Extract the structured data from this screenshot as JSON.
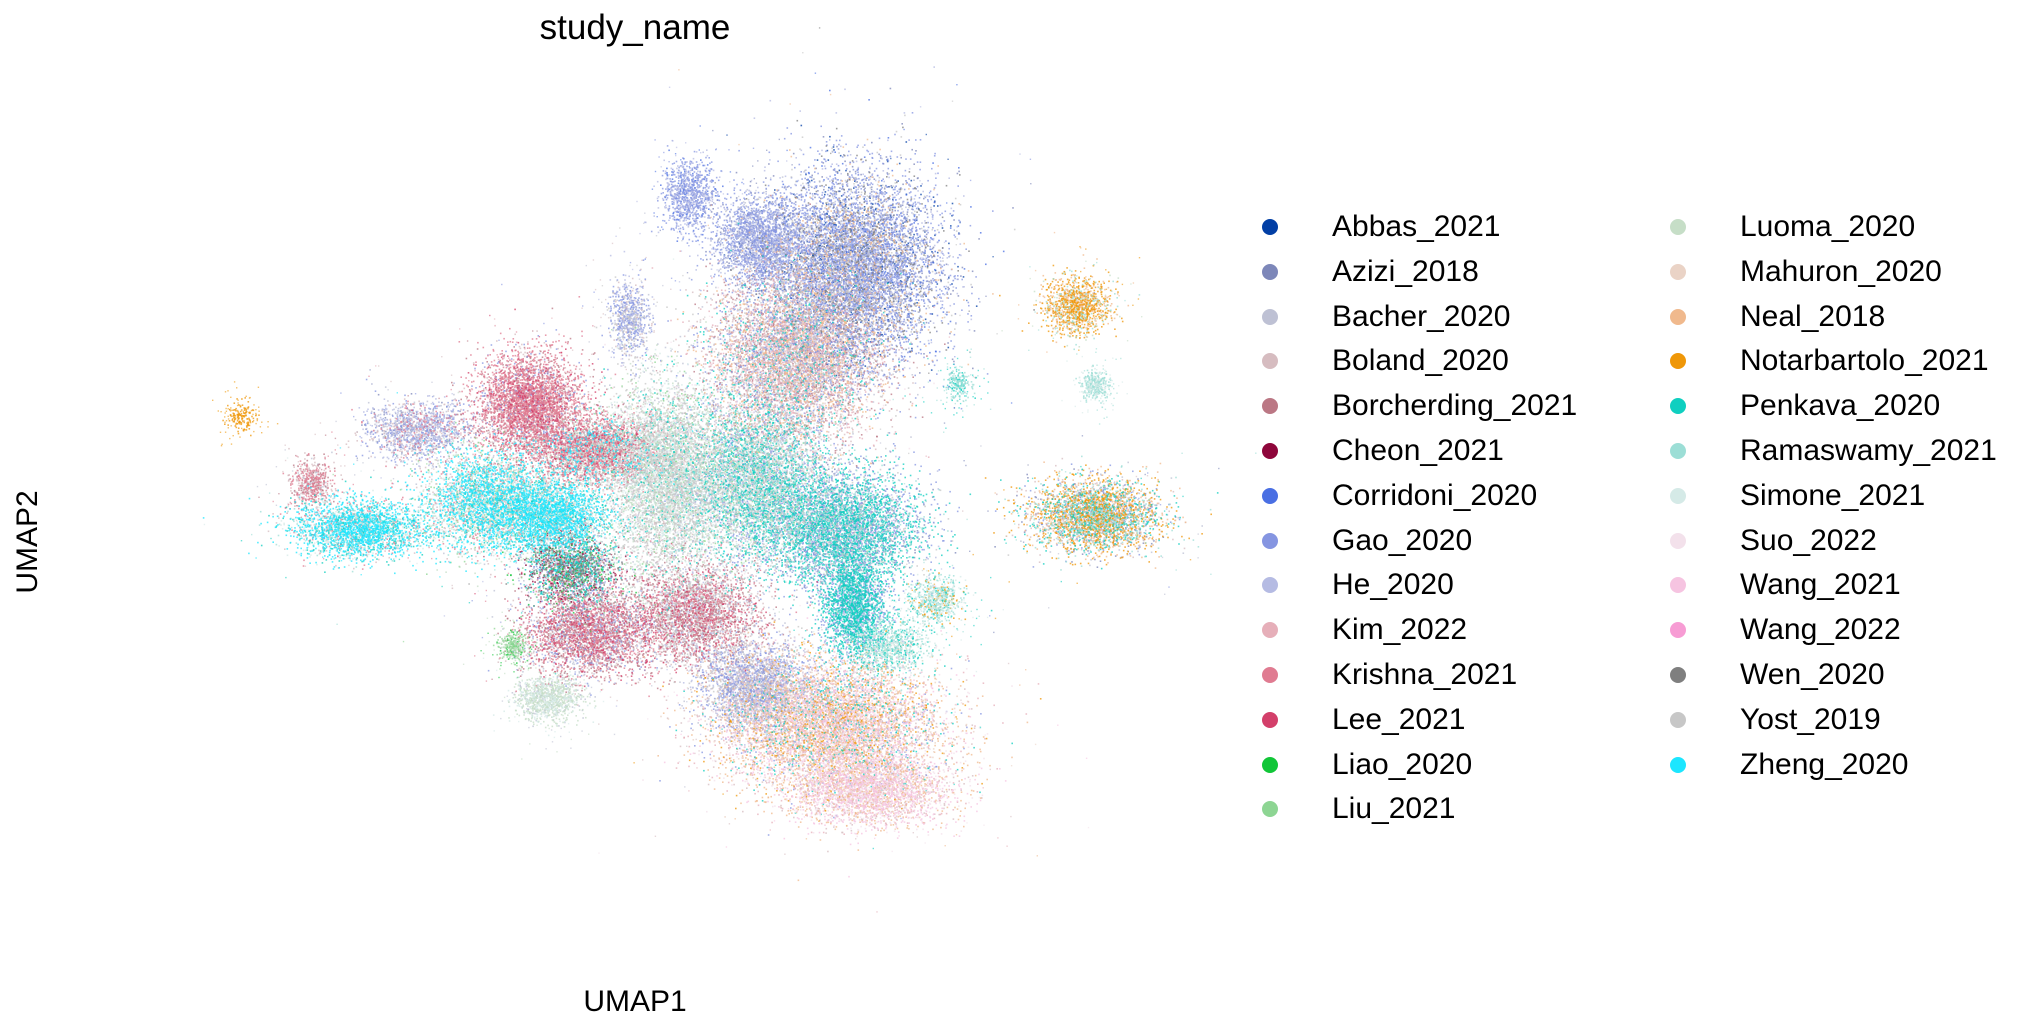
{
  "chart_data": {
    "type": "scatter",
    "title": "study_name",
    "xlabel": "UMAP1",
    "ylabel": "UMAP2",
    "grid": false,
    "axes_visible": false,
    "legend_placement": "right, two columns",
    "series": [
      {
        "name": "Abbas_2021",
        "color": "#023fa5"
      },
      {
        "name": "Azizi_2018",
        "color": "#7d87b9"
      },
      {
        "name": "Bacher_2020",
        "color": "#bec1d4"
      },
      {
        "name": "Boland_2020",
        "color": "#d6bcc0"
      },
      {
        "name": "Borcherding_2021",
        "color": "#bb7784"
      },
      {
        "name": "Cheon_2021",
        "color": "#8e063b"
      },
      {
        "name": "Corridoni_2020",
        "color": "#4a6fe3"
      },
      {
        "name": "Gao_2020",
        "color": "#8595e1"
      },
      {
        "name": "He_2020",
        "color": "#b5bbe3"
      },
      {
        "name": "Kim_2022",
        "color": "#e6afb9"
      },
      {
        "name": "Krishna_2021",
        "color": "#e07b91"
      },
      {
        "name": "Lee_2021",
        "color": "#d33f6a"
      },
      {
        "name": "Liao_2020",
        "color": "#11c638"
      },
      {
        "name": "Liu_2021",
        "color": "#8dd593"
      },
      {
        "name": "Luoma_2020",
        "color": "#c6dec7"
      },
      {
        "name": "Mahuron_2020",
        "color": "#ead3c6"
      },
      {
        "name": "Neal_2018",
        "color": "#f0b98d"
      },
      {
        "name": "Notarbartolo_2021",
        "color": "#ef9708"
      },
      {
        "name": "Penkava_2020",
        "color": "#0fcfc0"
      },
      {
        "name": "Ramaswamy_2021",
        "color": "#9cded6"
      },
      {
        "name": "Simone_2021",
        "color": "#d5eae7"
      },
      {
        "name": "Suo_2022",
        "color": "#f3e1eb"
      },
      {
        "name": "Wang_2021",
        "color": "#f6c4e1"
      },
      {
        "name": "Wang_2022",
        "color": "#f79cd4"
      },
      {
        "name": "Wen_2020",
        "color": "#7f7f7f"
      },
      {
        "name": "Yost_2019",
        "color": "#c7c7c7"
      },
      {
        "name": "Zheng_2020",
        "color": "#1ce6ff"
      }
    ],
    "clusters": [
      {
        "x": 0.52,
        "y": 0.78,
        "rx": 0.13,
        "ry": 0.13,
        "n": 9000,
        "series": [
          7,
          8,
          6,
          1,
          0,
          25,
          24,
          16
        ],
        "w": [
          6,
          2,
          1,
          2,
          1,
          1,
          1,
          1
        ]
      },
      {
        "x": 0.36,
        "y": 0.82,
        "rx": 0.07,
        "ry": 0.06,
        "n": 2200,
        "series": [
          7,
          8,
          1,
          2
        ],
        "w": [
          5,
          2,
          1,
          1
        ]
      },
      {
        "x": 0.42,
        "y": 0.64,
        "rx": 0.13,
        "ry": 0.12,
        "n": 8000,
        "series": [
          3,
          9,
          16,
          4,
          7,
          2,
          25,
          18,
          21
        ],
        "w": [
          3,
          3,
          2,
          2,
          2,
          1,
          1,
          1,
          1
        ]
      },
      {
        "x": 0.35,
        "y": 0.45,
        "rx": 0.11,
        "ry": 0.11,
        "n": 6000,
        "series": [
          18,
          19,
          20,
          13,
          25,
          7,
          8,
          3,
          14
        ],
        "w": [
          4,
          1,
          2,
          1,
          2,
          2,
          1,
          1,
          1
        ]
      },
      {
        "x": 0.5,
        "y": 0.38,
        "rx": 0.12,
        "ry": 0.08,
        "n": 5500,
        "series": [
          18,
          7,
          8,
          1,
          25,
          19
        ],
        "w": [
          5,
          3,
          1,
          1,
          1,
          1
        ]
      },
      {
        "x": 0.52,
        "y": 0.26,
        "rx": 0.05,
        "ry": 0.07,
        "n": 2200,
        "series": [
          18,
          7,
          8
        ],
        "w": [
          4,
          2,
          1
        ]
      },
      {
        "x": 0.08,
        "y": 0.5,
        "rx": 0.09,
        "ry": 0.045,
        "n": 3500,
        "series": [
          10,
          4,
          11,
          3,
          14,
          20,
          2,
          26
        ],
        "w": [
          5,
          2,
          1,
          1,
          1,
          1,
          1,
          1
        ]
      },
      {
        "x": 0.01,
        "y": 0.4,
        "rx": 0.08,
        "ry": 0.05,
        "n": 2800,
        "series": [
          26,
          18,
          20,
          19,
          14,
          25
        ],
        "w": [
          5,
          2,
          2,
          1,
          1,
          1
        ]
      },
      {
        "x": -0.1,
        "y": 0.42,
        "rx": 0.1,
        "ry": 0.07,
        "n": 4000,
        "series": [
          26,
          20,
          18,
          14,
          10,
          13,
          3,
          2
        ],
        "w": [
          4,
          2,
          1,
          2,
          1,
          1,
          1,
          1
        ]
      },
      {
        "x": -0.32,
        "y": 0.38,
        "rx": 0.1,
        "ry": 0.04,
        "n": 2800,
        "series": [
          26,
          18,
          20,
          19,
          10,
          3
        ],
        "w": [
          5,
          2,
          2,
          1,
          1,
          1
        ]
      },
      {
        "x": -0.4,
        "y": 0.45,
        "rx": 0.03,
        "ry": 0.03,
        "n": 500,
        "series": [
          10,
          3,
          4,
          2
        ],
        "w": [
          3,
          2,
          1,
          1
        ]
      },
      {
        "x": -0.22,
        "y": 0.53,
        "rx": 0.08,
        "ry": 0.04,
        "n": 1500,
        "series": [
          8,
          7,
          3,
          2,
          10,
          1
        ],
        "w": [
          3,
          2,
          2,
          2,
          1,
          1
        ]
      },
      {
        "x": -0.03,
        "y": 0.57,
        "rx": 0.08,
        "ry": 0.07,
        "n": 4000,
        "series": [
          10,
          11,
          4,
          3,
          9,
          7
        ],
        "w": [
          6,
          1,
          2,
          1,
          1,
          1
        ]
      },
      {
        "x": 0.2,
        "y": 0.46,
        "rx": 0.09,
        "ry": 0.13,
        "n": 6500,
        "series": [
          14,
          20,
          25,
          2,
          3,
          13,
          18,
          21
        ],
        "w": [
          3,
          3,
          3,
          2,
          1,
          1,
          1,
          1
        ]
      },
      {
        "x": 0.04,
        "y": 0.32,
        "rx": 0.07,
        "ry": 0.05,
        "n": 2200,
        "series": [
          5,
          24,
          18,
          13,
          12,
          8,
          10,
          2,
          7
        ],
        "w": [
          2,
          2,
          2,
          1,
          1,
          1,
          1,
          1,
          1
        ]
      },
      {
        "x": 0.07,
        "y": 0.22,
        "rx": 0.1,
        "ry": 0.06,
        "n": 3500,
        "series": [
          4,
          10,
          3,
          2,
          8,
          7,
          11
        ],
        "w": [
          3,
          3,
          2,
          1,
          1,
          1,
          1
        ]
      },
      {
        "x": 0.25,
        "y": 0.25,
        "rx": 0.1,
        "ry": 0.07,
        "n": 3500,
        "series": [
          4,
          3,
          10,
          11,
          2,
          8,
          25
        ],
        "w": [
          3,
          2,
          2,
          1,
          1,
          1,
          1
        ]
      },
      {
        "x": 0.0,
        "y": 0.12,
        "rx": 0.05,
        "ry": 0.03,
        "n": 1000,
        "series": [
          14,
          20,
          2
        ],
        "w": [
          4,
          2,
          1
        ]
      },
      {
        "x": 0.58,
        "y": 0.2,
        "rx": 0.06,
        "ry": 0.04,
        "n": 900,
        "series": [
          19,
          20,
          18,
          14
        ],
        "w": [
          3,
          2,
          2,
          1
        ]
      },
      {
        "x": 0.48,
        "y": 0.08,
        "rx": 0.17,
        "ry": 0.09,
        "n": 8000,
        "series": [
          16,
          21,
          22,
          9,
          3,
          15,
          17,
          7,
          18
        ],
        "w": [
          4,
          2,
          2,
          2,
          1,
          1,
          1,
          1,
          1
        ]
      },
      {
        "x": 0.35,
        "y": 0.14,
        "rx": 0.08,
        "ry": 0.06,
        "n": 2500,
        "series": [
          7,
          2,
          3,
          8,
          25
        ],
        "w": [
          3,
          2,
          2,
          1,
          1
        ]
      },
      {
        "x": 0.55,
        "y": -0.02,
        "rx": 0.12,
        "ry": 0.05,
        "n": 3000,
        "series": [
          22,
          21,
          16,
          3,
          9
        ],
        "w": [
          3,
          2,
          2,
          1,
          1
        ]
      },
      {
        "x": 0.93,
        "y": 0.4,
        "rx": 0.1,
        "ry": 0.05,
        "n": 3500,
        "series": [
          17,
          16,
          19,
          18,
          7,
          3,
          1,
          2
        ],
        "w": [
          4,
          3,
          2,
          2,
          1,
          1,
          1,
          1
        ]
      },
      {
        "x": 0.9,
        "y": 0.72,
        "rx": 0.05,
        "ry": 0.04,
        "n": 1200,
        "series": [
          17,
          16,
          19,
          14
        ],
        "w": [
          4,
          3,
          1,
          1
        ]
      },
      {
        "x": 0.93,
        "y": 0.6,
        "rx": 0.02,
        "ry": 0.02,
        "n": 300,
        "series": [
          19,
          20
        ],
        "w": [
          3,
          1
        ]
      },
      {
        "x": 0.66,
        "y": 0.27,
        "rx": 0.04,
        "ry": 0.03,
        "n": 600,
        "series": [
          19,
          20,
          17,
          18
        ],
        "w": [
          3,
          2,
          1,
          1
        ]
      },
      {
        "x": 0.24,
        "y": 0.89,
        "rx": 0.04,
        "ry": 0.05,
        "n": 900,
        "series": [
          7,
          8,
          6
        ],
        "w": [
          4,
          2,
          1
        ]
      },
      {
        "x": 0.14,
        "y": 0.7,
        "rx": 0.03,
        "ry": 0.05,
        "n": 700,
        "series": [
          7,
          8,
          2,
          3,
          25
        ],
        "w": [
          3,
          2,
          1,
          1,
          1
        ]
      },
      {
        "x": -0.06,
        "y": 0.2,
        "rx": 0.02,
        "ry": 0.02,
        "n": 250,
        "series": [
          13,
          12,
          14
        ],
        "w": [
          3,
          1,
          1
        ]
      },
      {
        "x": -0.52,
        "y": 0.55,
        "rx": 0.02,
        "ry": 0.02,
        "n": 120,
        "series": [
          17
        ],
        "w": [
          1
        ]
      },
      {
        "x": 0.7,
        "y": 0.6,
        "rx": 0.02,
        "ry": 0.02,
        "n": 150,
        "series": [
          19,
          18
        ],
        "w": [
          2,
          1
        ]
      }
    ],
    "xlim": [
      -0.75,
      1.05
    ],
    "ylim": [
      -0.25,
      1.05
    ]
  }
}
